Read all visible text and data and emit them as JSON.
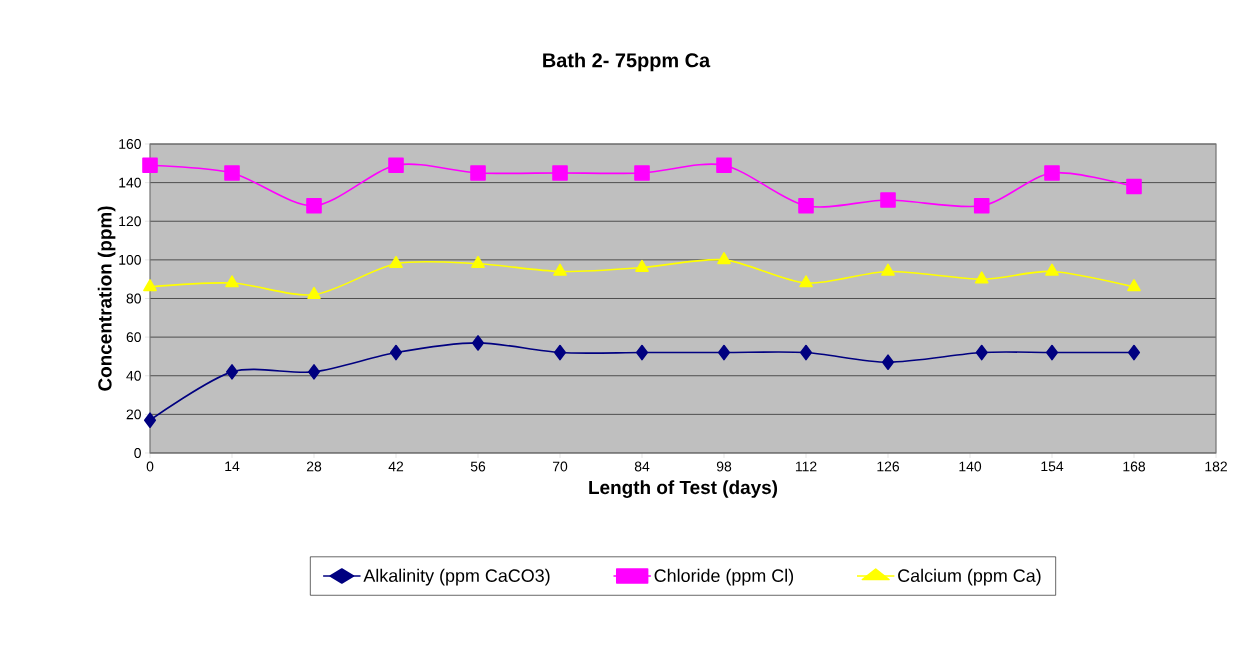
{
  "chart_data": {
    "type": "line",
    "title": "Bath 2- 75ppm Ca",
    "xlabel": "Length of Test (days)",
    "ylabel": "Concentration (ppm)",
    "x": [
      0,
      14,
      28,
      42,
      56,
      70,
      84,
      98,
      112,
      126,
      142,
      154,
      168
    ],
    "xlim": [
      0,
      182
    ],
    "xticks": [
      0,
      14,
      28,
      42,
      56,
      70,
      84,
      98,
      112,
      126,
      140,
      154,
      168,
      182
    ],
    "ylim": [
      0,
      160
    ],
    "yticks": [
      0,
      20,
      40,
      60,
      80,
      100,
      120,
      140,
      160
    ],
    "grid": "y",
    "legend": "bottom",
    "series": [
      {
        "name": "Alkalinity (ppm CaCO3)",
        "color": "#000080",
        "marker": "diamond",
        "values": [
          17,
          42,
          42,
          52,
          57,
          52,
          52,
          52,
          52,
          47,
          52,
          52,
          52
        ]
      },
      {
        "name": "Chloride (ppm Cl)",
        "color": "#ff00ff",
        "marker": "square",
        "values": [
          149,
          145,
          128,
          149,
          145,
          145,
          145,
          149,
          128,
          131,
          128,
          145,
          138
        ]
      },
      {
        "name": "Calcium (ppm Ca)",
        "color": "#ffff00",
        "marker": "triangle",
        "values": [
          86,
          88,
          82,
          98,
          98,
          94,
          96,
          100,
          88,
          94,
          90,
          94,
          86
        ]
      }
    ]
  }
}
